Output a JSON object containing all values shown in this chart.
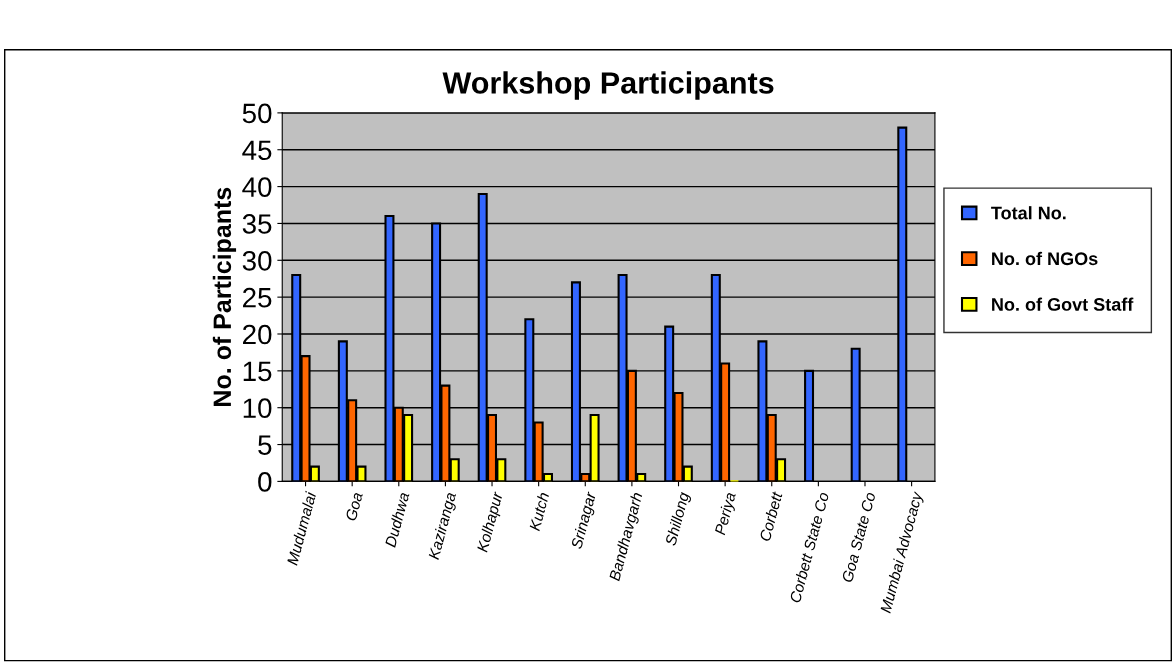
{
  "chart_data": {
    "type": "bar",
    "title": "Workshop Participants",
    "ylabel": "No. of Participants",
    "categories": [
      "Mudumalai",
      "Goa",
      "Dudhwa",
      "Kaziranga",
      "Kolhapur",
      "Kutch",
      "Srinagar",
      "Bandhavgarh",
      "Shillong",
      "Periya",
      "Corbett",
      "Corbett State Co",
      "Goa State Co",
      "Mumbai Advocacy"
    ],
    "series": [
      {
        "name": "Total No.",
        "color": "#3366ff",
        "values": [
          28,
          19,
          36,
          35,
          39,
          22,
          27,
          28,
          21,
          28,
          19,
          15,
          18,
          48
        ]
      },
      {
        "name": "No. of NGOs",
        "color": "#ff6600",
        "values": [
          17,
          11,
          10,
          13,
          9,
          8,
          1,
          15,
          12,
          16,
          9,
          null,
          null,
          null
        ]
      },
      {
        "name": "No. of Govt Staff",
        "color": "#ffff00",
        "values": [
          2,
          2,
          9,
          3,
          3,
          1,
          9,
          1,
          2,
          0,
          3,
          null,
          null,
          null
        ]
      }
    ],
    "ylim": [
      0,
      50
    ],
    "yticks": [
      0,
      5,
      10,
      15,
      20,
      25,
      30,
      35,
      40,
      45,
      50
    ],
    "grid": "y",
    "legend": "right"
  }
}
